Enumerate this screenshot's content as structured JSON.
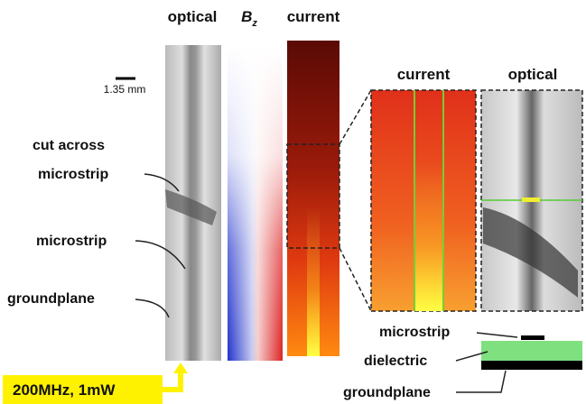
{
  "column_headers": {
    "optical": "optical",
    "bz_symbol": "B",
    "bz_subscript": "z",
    "current": "current"
  },
  "scale_bar": "1.35 mm",
  "left_labels": {
    "cut_across": [
      "cut across",
      "microstrip"
    ],
    "microstrip": "microstrip",
    "groundplane": "groundplane"
  },
  "zoom_headers": {
    "current": "current",
    "optical": "optical"
  },
  "schematic_labels": {
    "microstrip": "microstrip",
    "dielectric": "dielectric",
    "groundplane": "groundplane"
  },
  "drive_label": "200MHz, 1mW"
}
